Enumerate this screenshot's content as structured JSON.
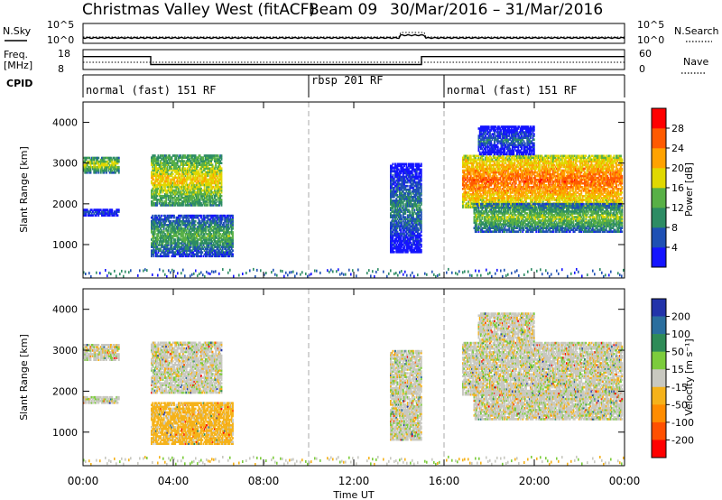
{
  "header": {
    "station": "Christmas Valley West (fitACF)",
    "beam": "Beam 09",
    "dates": "30/Mar/2016 – 31/Mar/2016"
  },
  "panel_labels": {
    "nsky": "N.Sky",
    "nsearch": "N.Search",
    "freq": "Freq.",
    "freq_unit": "[MHz]",
    "nave": "Nave",
    "cpid": "CPID",
    "nsky_ticks": [
      "10^5",
      "10^0"
    ],
    "nsearch_ticks": [
      "10^5",
      "10^0"
    ],
    "freq_ticks": [
      "18",
      "8"
    ],
    "nave_ticks": [
      "60",
      "0"
    ]
  },
  "cpid_segments": [
    {
      "label": "normal (fast) 151 RF",
      "start": 0,
      "end": 10
    },
    {
      "label": "rbsp 201 RF",
      "start": 10,
      "end": 16
    },
    {
      "label": "normal (fast) 151 RF",
      "start": 16,
      "end": 24
    }
  ],
  "axes": {
    "ylabel": "Slant Range [km]",
    "xlabel": "Time UT",
    "xticks": [
      "00:00",
      "04:00",
      "08:00",
      "12:00",
      "16:00",
      "20:00",
      "00:00"
    ],
    "yticks": [
      "1000",
      "2000",
      "3000",
      "4000"
    ]
  },
  "power_colorbar": {
    "label": "Power [dB]",
    "ticks": [
      "4",
      "8",
      "12",
      "16",
      "20",
      "24",
      "28"
    ],
    "colors": [
      "#1414ff",
      "#1e50b4",
      "#2d8c64",
      "#58b046",
      "#e0d800",
      "#ffa200",
      "#ff5a00",
      "#ff0000"
    ]
  },
  "velocity_colorbar": {
    "label": "Velocity [m s⁻¹]",
    "ticks": [
      "200",
      "100",
      "50",
      "15",
      "-15",
      "-50",
      "-100",
      "-200"
    ],
    "colors": [
      "#2233aa",
      "#2a6e9e",
      "#2e8b57",
      "#7ccc3c",
      "#c8c8c0",
      "#f5b21a",
      "#ff8c00",
      "#ff5000",
      "#ff0000"
    ]
  },
  "chart_data": {
    "type": "heatmap",
    "x_range": [
      "00:00",
      "24:00"
    ],
    "y_range_km": [
      180,
      4500
    ],
    "freq_mhz": [
      {
        "start": 0.0,
        "end": 3.0,
        "value": 14.5
      },
      {
        "start": 3.0,
        "end": 15.0,
        "value": 10.5
      },
      {
        "start": 15.0,
        "end": 24.0,
        "value": 14.5
      }
    ],
    "echo_regions": [
      {
        "name": "A1",
        "start": 0.0,
        "end": 1.6,
        "range": [
          2750,
          3150
        ],
        "power": 18,
        "velocity": 0
      },
      {
        "name": "A2",
        "start": 0.0,
        "end": 1.6,
        "range": [
          1700,
          1850
        ],
        "power": 7,
        "velocity": 0
      },
      {
        "name": "B1",
        "start": 3.0,
        "end": 6.1,
        "range": [
          1950,
          3200
        ],
        "power": 20,
        "velocity": 0
      },
      {
        "name": "B2",
        "start": 3.0,
        "end": 6.6,
        "range": [
          700,
          1700
        ],
        "power": 14,
        "velocity": -30
      },
      {
        "name": "C1",
        "start": 13.6,
        "end": 15.0,
        "range": [
          800,
          3000
        ],
        "power": 10,
        "velocity": 0
      },
      {
        "name": "D1",
        "start": 16.8,
        "end": 23.9,
        "range": [
          1900,
          3200
        ],
        "power": 26,
        "velocity": 0
      },
      {
        "name": "D2",
        "start": 17.3,
        "end": 23.9,
        "range": [
          1300,
          2000
        ],
        "power": 16,
        "velocity": 0
      },
      {
        "name": "D3",
        "start": 17.5,
        "end": 20.0,
        "range": [
          3200,
          3900
        ],
        "power": 8,
        "velocity": 0
      }
    ]
  }
}
